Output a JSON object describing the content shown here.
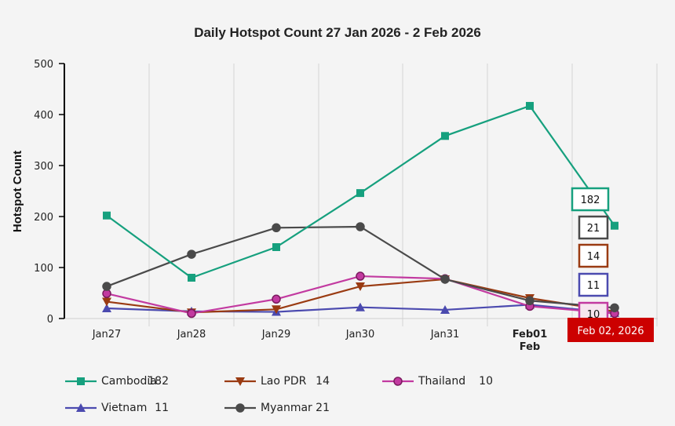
{
  "chart_data": {
    "type": "line",
    "title": "Daily Hotspot Count 27 Jan 2026 - 2 Feb 2026",
    "xlabel": "",
    "ylabel": "Hotspot Count",
    "ylim": [
      0,
      500
    ],
    "yticks": [
      0,
      100,
      200,
      300,
      400,
      500
    ],
    "grid": "vertical",
    "categories": [
      "Jan27",
      "Jan28",
      "Jan29",
      "Jan30",
      "Jan31",
      "Feb01",
      "Feb 02"
    ],
    "x_tick_labels": [
      "Jan27",
      "Jan28",
      "Jan29",
      "Jan30",
      "Jan31",
      "Feb01",
      ""
    ],
    "x_tick_sublabels": [
      "",
      "",
      "",
      "",
      "",
      "Feb",
      ""
    ],
    "bold_ticks": [
      false,
      false,
      false,
      false,
      false,
      true,
      false
    ],
    "series": [
      {
        "name": "Cambodia",
        "color": "#16a07e",
        "marker": "square",
        "values": [
          202,
          80,
          140,
          246,
          358,
          417,
          182
        ]
      },
      {
        "name": "Lao PDR",
        "color": "#9a3b12",
        "marker": "triangle-down",
        "values": [
          33,
          12,
          18,
          63,
          77,
          40,
          14
        ]
      },
      {
        "name": "Thailand",
        "color": "#c23aa0",
        "marker": "circle",
        "values": [
          49,
          10,
          38,
          83,
          78,
          24,
          10
        ]
      },
      {
        "name": "Vietnam",
        "color": "#4b4aaf",
        "marker": "triangle-up",
        "values": [
          20,
          14,
          13,
          22,
          17,
          27,
          11
        ]
      },
      {
        "name": "Myanmar",
        "color": "#4a4a4a",
        "marker": "circle",
        "values": [
          63,
          126,
          178,
          180,
          77,
          35,
          21
        ]
      }
    ],
    "legend_placement": "bottom",
    "tooltip": {
      "date": "Feb 02, 2026",
      "entries": [
        {
          "series": "Cambodia",
          "value": "182"
        },
        {
          "series": "Myanmar",
          "value": "21"
        },
        {
          "series": "Lao PDR",
          "value": "14"
        },
        {
          "series": "Vietnam",
          "value": "11"
        },
        {
          "series": "Thailand",
          "value": "10"
        }
      ]
    }
  },
  "legend": [
    {
      "name": "Cambodia",
      "value": "182"
    },
    {
      "name": "Lao PDR",
      "value": "14"
    },
    {
      "name": "Thailand",
      "value": "10"
    },
    {
      "name": "Vietnam",
      "value": "11"
    },
    {
      "name": "Myanmar",
      "value": "21"
    }
  ]
}
